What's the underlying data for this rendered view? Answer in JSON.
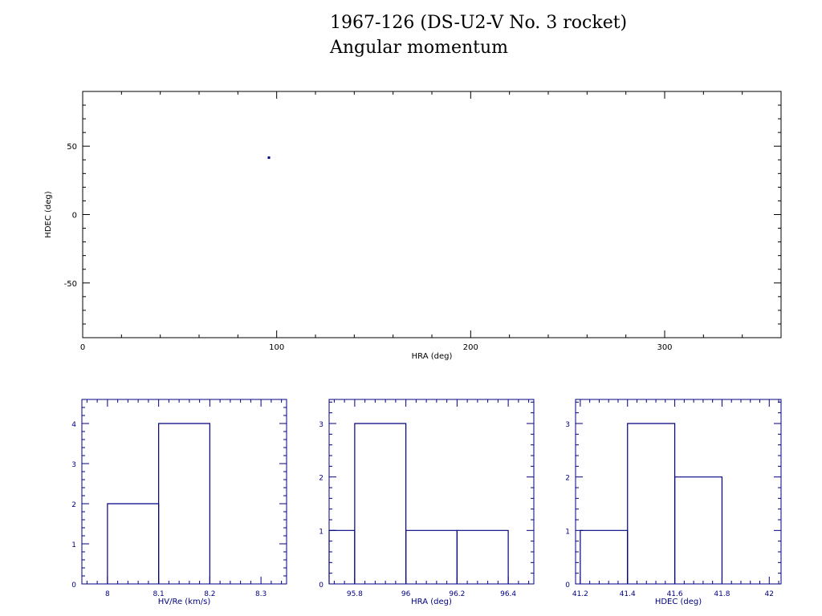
{
  "title": "1967-126 (DS-U2-V No. 3 rocket)",
  "subtitle": "Angular momentum",
  "colors": {
    "axes_main": "#000000",
    "data": "#000080",
    "background": "#ffffff"
  },
  "chart_data": [
    {
      "type": "scatter",
      "xlabel": "HRA (deg)",
      "ylabel": "HDEC (deg)",
      "xlim": [
        0,
        360
      ],
      "ylim": [
        -90,
        90
      ],
      "x_ticks": [
        0,
        100,
        200,
        300
      ],
      "y_ticks": [
        -50,
        0,
        50
      ],
      "points": [
        [
          96,
          41.6
        ]
      ]
    },
    {
      "type": "bar",
      "histogram": true,
      "xlabel": "HV/Re (km/s)",
      "xlim": [
        7.95,
        8.35
      ],
      "ylim": [
        0,
        4.6
      ],
      "x_ticks": [
        "8",
        "8.1",
        "8.2",
        "8.3"
      ],
      "y_ticks": [
        "0",
        "1",
        "2",
        "3",
        "4"
      ],
      "x_tick_values": [
        8,
        8.1,
        8.2,
        8.3
      ],
      "y_tick_values": [
        0,
        1,
        2,
        3,
        4
      ],
      "bin_edges": [
        8.0,
        8.1,
        8.2
      ],
      "values": [
        2,
        4
      ]
    },
    {
      "type": "bar",
      "histogram": true,
      "xlabel": "HRA (deg)",
      "xlim": [
        95.7,
        96.5
      ],
      "ylim": [
        0,
        3.45
      ],
      "x_ticks": [
        "95.8",
        "96",
        "96.2",
        "96.4"
      ],
      "y_ticks": [
        "0",
        "1",
        "2",
        "3"
      ],
      "x_tick_values": [
        95.8,
        96,
        96.2,
        96.4
      ],
      "y_tick_values": [
        0,
        1,
        2,
        3
      ],
      "bin_edges": [
        95.7,
        95.8,
        96.0,
        96.2,
        96.4
      ],
      "values": [
        1,
        3,
        1,
        1
      ]
    },
    {
      "type": "bar",
      "histogram": true,
      "xlabel": "HDEC (deg)",
      "xlim": [
        41.18,
        42.05
      ],
      "ylim": [
        0,
        3.45
      ],
      "x_ticks": [
        "41.2",
        "41.4",
        "41.6",
        "41.8",
        "42"
      ],
      "y_ticks": [
        "0",
        "1",
        "2",
        "3"
      ],
      "x_tick_values": [
        41.2,
        41.4,
        41.6,
        41.8,
        42
      ],
      "y_tick_values": [
        0,
        1,
        2,
        3
      ],
      "bin_edges": [
        41.2,
        41.4,
        41.6,
        41.8
      ],
      "values": [
        1,
        3,
        2
      ]
    }
  ]
}
